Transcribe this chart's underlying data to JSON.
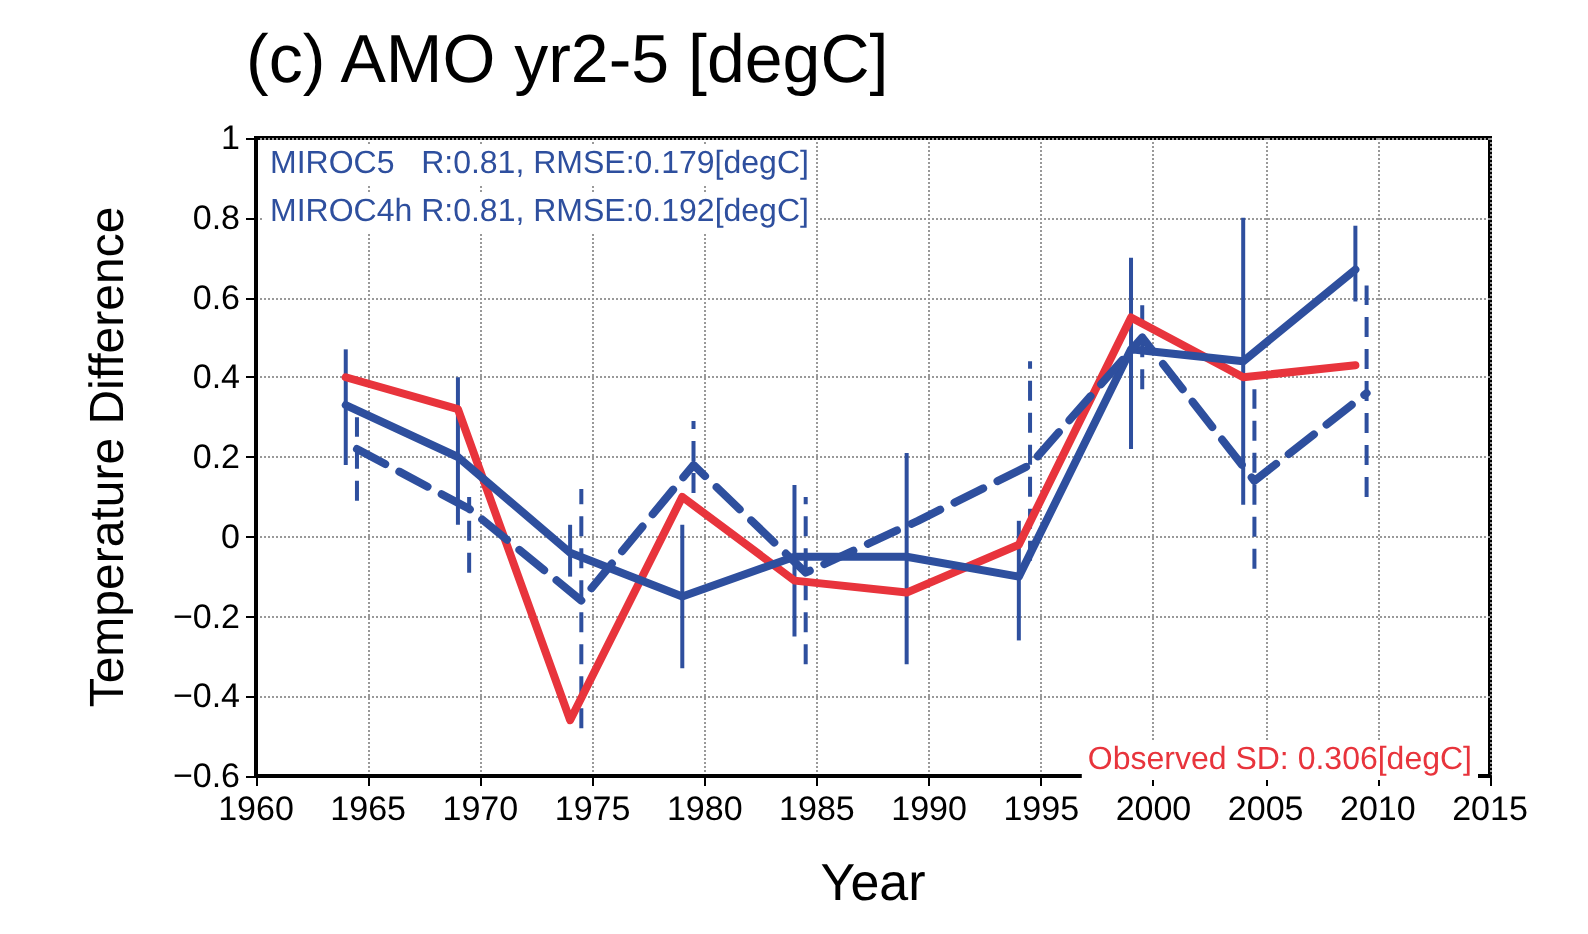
{
  "chart_data": {
    "type": "line",
    "title": "(c) AMO yr2-5 [degC]",
    "xlabel": "Year",
    "ylabel": "Temperature Difference",
    "xlim": [
      1960,
      2015
    ],
    "xticks": [
      1960,
      1965,
      1970,
      1975,
      1980,
      1985,
      1990,
      1995,
      2000,
      2005,
      2010,
      2015
    ],
    "ylim": [
      -0.6,
      1
    ],
    "yticks": [
      -0.6,
      -0.4,
      -0.2,
      0,
      0.2,
      0.4,
      0.6,
      0.8,
      1
    ],
    "grid": true,
    "marker": "none",
    "series": [
      {
        "color": "#e8343c",
        "line_style": "solid",
        "x": [
          1964,
          1969,
          1974,
          1979,
          1984,
          1989,
          1994,
          1999,
          2004,
          2009
        ],
        "values": [
          0.4,
          0.32,
          -0.46,
          0.1,
          -0.11,
          -0.14,
          -0.02,
          0.55,
          0.4,
          0.43
        ]
      },
      {
        "color": "#2e4f9e",
        "line_style": "solid",
        "x": [
          1964,
          1969,
          1974,
          1979,
          1984,
          1989,
          1994,
          1999,
          2004,
          2009
        ],
        "values": [
          0.33,
          0.2,
          -0.04,
          -0.15,
          -0.05,
          -0.05,
          -0.1,
          0.47,
          0.44,
          0.67
        ],
        "errors": [
          [
            0.18,
            0.47
          ],
          [
            0.03,
            0.4
          ],
          [
            -0.1,
            0.03
          ],
          [
            -0.33,
            0.03
          ],
          [
            -0.25,
            0.13
          ],
          [
            -0.32,
            0.21
          ],
          [
            -0.26,
            0.04
          ],
          [
            0.22,
            0.7
          ],
          [
            0.08,
            0.8
          ],
          [
            0.59,
            0.78
          ]
        ]
      },
      {
        "color": "#2e4f9e",
        "line_style": "dashed",
        "x": [
          1964.5,
          1969.5,
          1974.5,
          1979.5,
          1984.5,
          1989.5,
          1994.5,
          1999.5,
          2004.5,
          2009.5
        ],
        "values": [
          0.22,
          0.07,
          -0.16,
          0.18,
          -0.09,
          0.04,
          0.18,
          0.5,
          0.14,
          0.36
        ],
        "errors": [
          [
            0.09,
            0.3
          ],
          [
            -0.09,
            0.1
          ],
          [
            -0.48,
            0.12
          ],
          [
            0.11,
            0.29
          ],
          [
            -0.32,
            0.1
          ],
          null,
          [
            -0.06,
            0.44
          ],
          [
            0.37,
            0.61
          ],
          [
            -0.08,
            0.37
          ],
          [
            0.1,
            0.63
          ]
        ]
      }
    ],
    "annotations": [
      "MIROC5   R:0.81, RMSE:0.179[degC]",
      "MIROC4h R:0.81, RMSE:0.192[degC]",
      "Observed SD: 0.306[degC]"
    ]
  }
}
